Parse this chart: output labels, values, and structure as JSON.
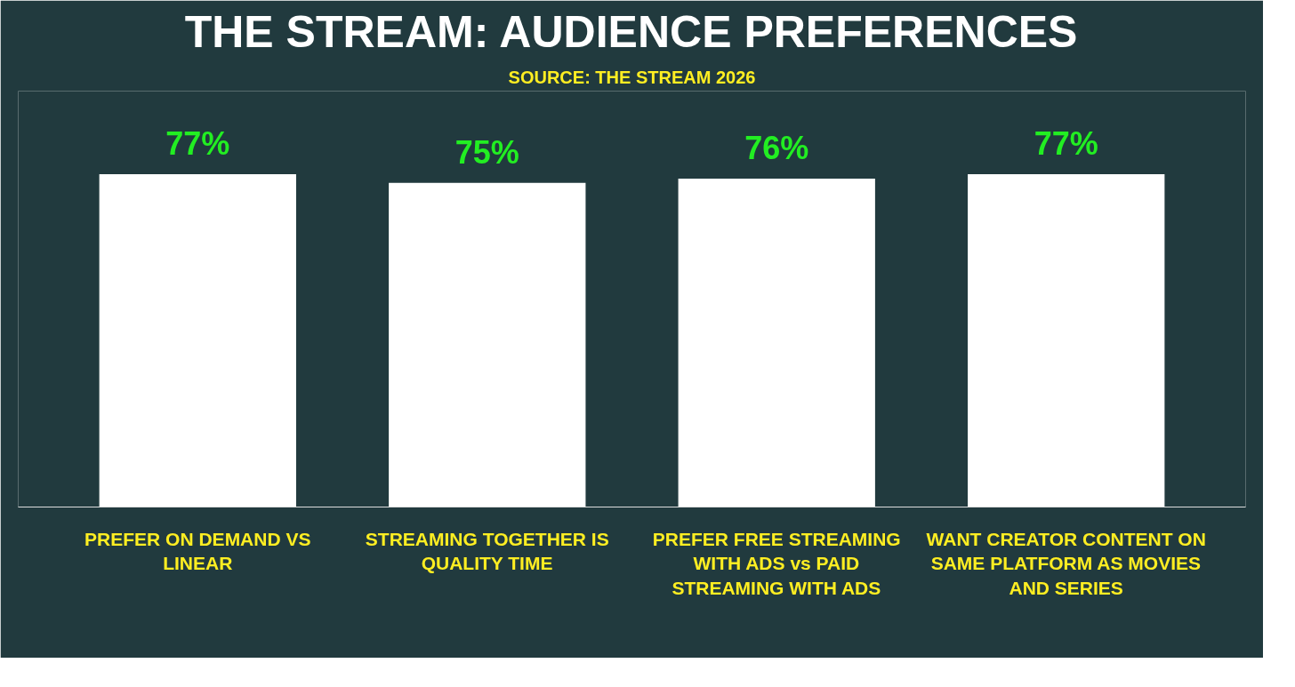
{
  "chart_data": {
    "type": "bar",
    "title": "THE STREAM: AUDIENCE PREFERENCES",
    "subtitle": "SOURCE: THE STREAM 2026",
    "categories": [
      "PREFER ON DEMAND VS LINEAR",
      "STREAMING TOGETHER IS QUALITY TIME",
      "PREFER FREE STREAMING WITH ADS vs PAID STREAMING WITH ADS",
      "WANT CREATOR CONTENT ON SAME PLATFORM AS MOVIES AND SERIES"
    ],
    "values": [
      77,
      75,
      76,
      77
    ],
    "color": "#ffffff",
    "data_labels": true,
    "value_labels": [
      "77%",
      "75%",
      "76%",
      "77%"
    ],
    "grid": false
  }
}
